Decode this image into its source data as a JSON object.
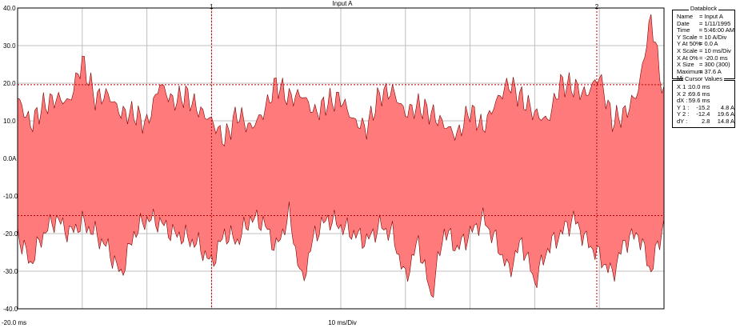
{
  "chart_data": {
    "type": "area",
    "title": "Input A",
    "y_ticks": [
      "40.0",
      "30.0",
      "20.0",
      "10.0",
      "0.0A",
      "-10.0",
      "-20.0",
      "-30.0",
      "-40.0"
    ],
    "ylim": [
      -40,
      40
    ],
    "xlim": [
      -20,
      80
    ],
    "x_start_label": "-20.0 ms",
    "x_scale_label": "10 ms/Div",
    "cursor_labels": [
      "1",
      "2"
    ],
    "cursors_ms": [
      10.0,
      69.6
    ],
    "cursor_levels_A": [
      19.6,
      -15.2
    ],
    "colors": {
      "fill": "#ff7b7b",
      "outline": "#7a0000",
      "grid": "#bfbfbf",
      "cursor": "#c00000"
    },
    "series": [
      {
        "x": [
          -20,
          -18,
          -16,
          -14,
          -12,
          -10,
          -8,
          -6,
          -4,
          -2,
          0,
          2,
          4,
          6,
          8,
          10,
          12,
          14,
          16,
          18,
          20,
          22,
          24,
          26,
          28,
          30,
          32,
          34,
          36,
          38,
          40,
          42,
          44,
          46,
          48,
          50,
          52,
          54,
          56,
          58,
          60,
          62,
          64,
          66,
          68,
          70,
          72,
          74,
          76,
          78,
          80
        ],
        "upper": [
          16,
          9,
          14,
          16,
          15,
          26,
          16,
          17,
          12,
          12,
          9,
          20,
          15,
          17,
          13,
          10,
          5,
          12,
          8,
          12,
          20,
          16,
          17,
          12,
          15,
          16,
          10,
          8,
          17,
          18,
          12,
          14,
          12,
          9,
          6,
          13,
          8,
          15,
          20,
          16,
          12,
          10,
          20,
          19,
          17,
          22,
          10,
          12,
          18,
          37.6,
          16
        ],
        "lower": [
          -20,
          -28,
          -20,
          -16,
          -20,
          -17,
          -20,
          -24,
          -31,
          -20,
          -16,
          -17,
          -20,
          -21,
          -23,
          -28,
          -20,
          -22,
          -16,
          -17,
          -24,
          -15,
          -33,
          -20,
          -16,
          -18,
          -20,
          -22,
          -18,
          -20,
          -32,
          -22,
          -37,
          -19,
          -24,
          -20,
          -16,
          -22,
          -30,
          -22,
          -33,
          -24,
          -20,
          -16,
          -22,
          -26,
          -31,
          -22,
          -20,
          -30,
          -17
        ]
      }
    ]
  },
  "datablock": {
    "title": "Datablock",
    "rows": [
      {
        "k": "Name",
        "v": "= Input A"
      },
      {
        "k": "Date",
        "v": "= 1/11/1995"
      },
      {
        "k": "Time",
        "v": "= 5:46:00 AM"
      },
      {
        "k": "Y Scale",
        "v": "= 10    A/Div"
      },
      {
        "k": "Y At 50%",
        "v": "=   0.0 A"
      },
      {
        "k": "X Scale",
        "v": "= 10    ms/Div"
      },
      {
        "k": "X At 0%",
        "v": "= -20.0 ms"
      },
      {
        "k": "X Size",
        "v": "= 300 (300)"
      },
      {
        "k": "Maximum",
        "v": "= 37.6 A"
      },
      {
        "k": "Minimum",
        "v": "= -38.0 A"
      }
    ]
  },
  "cursor_values": {
    "title": "Cursor Values",
    "rows": [
      {
        "k": "X 1 :",
        "a": "10.0 ms",
        "b": ""
      },
      {
        "k": "X 2 :",
        "a": "69.6 ms",
        "b": ""
      },
      {
        "k": "dX :",
        "a": "59.6 ms",
        "b": ""
      },
      {
        "k": "Y 1 :",
        "a": "-15.2",
        "b": "4.8 A"
      },
      {
        "k": "Y 2 :",
        "a": "-12.4",
        "b": "19.6 A"
      },
      {
        "k": "dY :",
        "a": "2.8",
        "b": "14.8 A"
      }
    ]
  }
}
